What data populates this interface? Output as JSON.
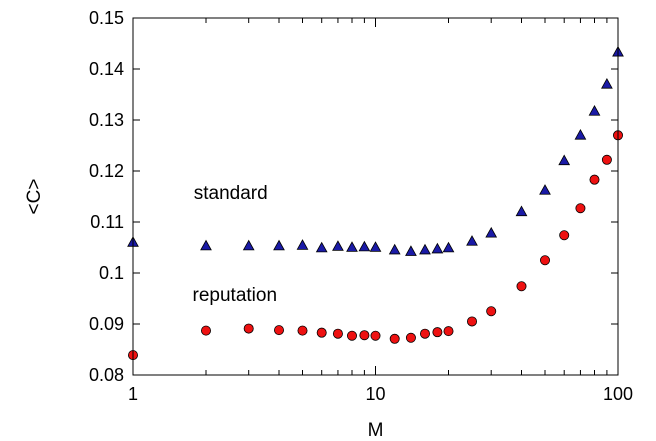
{
  "chart_data": {
    "type": "scatter",
    "xlabel": "M",
    "ylabel": "<C>",
    "x_scale": "log",
    "xlim": [
      1,
      100
    ],
    "ylim": [
      0.08,
      0.15
    ],
    "grid": false,
    "legend": "none",
    "x_ticks": [
      {
        "value": 1,
        "label": "1"
      },
      {
        "value": 10,
        "label": "10"
      },
      {
        "value": 100,
        "label": "100"
      }
    ],
    "y_ticks": [
      {
        "value": 0.08,
        "label": "0.08"
      },
      {
        "value": 0.09,
        "label": "0.09"
      },
      {
        "value": 0.1,
        "label": "0.1"
      },
      {
        "value": 0.11,
        "label": "0.11"
      },
      {
        "value": 0.12,
        "label": "0.12"
      },
      {
        "value": 0.13,
        "label": "0.13"
      },
      {
        "value": 0.14,
        "label": "0.14"
      },
      {
        "value": 0.15,
        "label": "0.15"
      }
    ],
    "annotations": [
      {
        "text": "standard",
        "x": 1.78,
        "y": 0.1145
      },
      {
        "text": "reputation",
        "x": 1.76,
        "y": 0.0945
      }
    ],
    "series": [
      {
        "name": "standard",
        "marker": "triangle",
        "color": "#1a1aa6",
        "x": [
          1,
          2,
          3,
          4,
          5,
          6,
          7,
          8,
          9,
          10,
          12,
          14,
          16,
          18,
          20,
          25,
          30,
          40,
          50,
          60,
          70,
          80,
          90,
          100
        ],
        "y": [
          0.106,
          0.1053,
          0.1053,
          0.1053,
          0.1054,
          0.1049,
          0.1052,
          0.105,
          0.1051,
          0.105,
          0.1045,
          0.1042,
          0.1045,
          0.1047,
          0.1049,
          0.1062,
          0.1078,
          0.112,
          0.1162,
          0.122,
          0.127,
          0.1317,
          0.137,
          0.1433
        ]
      },
      {
        "name": "reputation",
        "marker": "circle",
        "color": "#ee1111",
        "x": [
          1,
          2,
          3,
          4,
          5,
          6,
          7,
          8,
          9,
          10,
          12,
          14,
          16,
          18,
          20,
          25,
          30,
          40,
          50,
          60,
          70,
          80,
          90,
          100
        ],
        "y": [
          0.0839,
          0.0887,
          0.0891,
          0.0888,
          0.0887,
          0.0883,
          0.0881,
          0.0877,
          0.0878,
          0.0877,
          0.0871,
          0.0873,
          0.0881,
          0.0884,
          0.0886,
          0.0905,
          0.0925,
          0.0974,
          0.1025,
          0.1074,
          0.1127,
          0.1183,
          0.1222,
          0.127
        ]
      }
    ]
  }
}
